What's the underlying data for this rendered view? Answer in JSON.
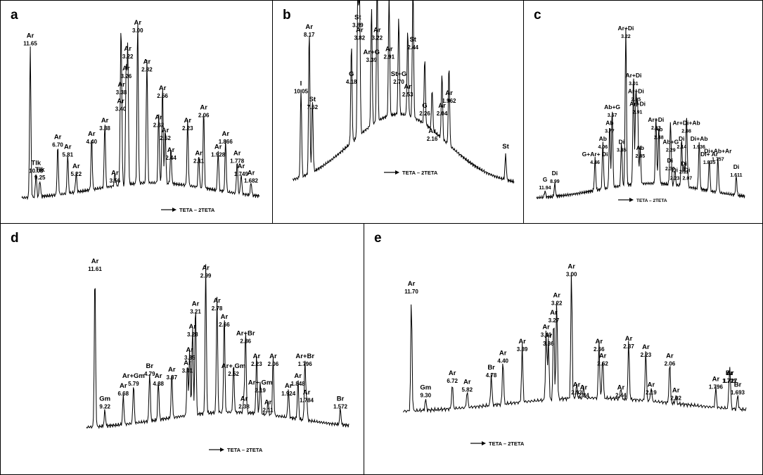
{
  "chart_data": [
    {
      "panel": "a",
      "type": "line",
      "xlabel": "TETA – 2TETA",
      "peaks": [
        {
          "label": "Tlk",
          "d": "10.08",
          "h": 0.14
        },
        {
          "label": "Tlk",
          "d": "9.25",
          "h": 0.1
        },
        {
          "label": "Ar",
          "d": "11.65",
          "h": 0.92
        },
        {
          "label": "Ar",
          "d": "6.70",
          "h": 0.3
        },
        {
          "label": "Ar",
          "d": "5.81",
          "h": 0.24
        },
        {
          "label": "Ar",
          "d": "5.22",
          "h": 0.12
        },
        {
          "label": "Ar",
          "d": "4.40",
          "h": 0.32
        },
        {
          "label": "Ar",
          "d": "3.88",
          "h": 0.4
        },
        {
          "label": "Ar",
          "d": "3.56",
          "h": 0.08
        },
        {
          "label": "Ar",
          "d": "3.40",
          "h": 0.52
        },
        {
          "label": "Ar",
          "d": "3.38",
          "h": 0.62
        },
        {
          "label": "Ar",
          "d": "3.26",
          "h": 0.72
        },
        {
          "label": "Ar",
          "d": "3.22",
          "h": 0.84
        },
        {
          "label": "Ar",
          "d": "3.00",
          "h": 1.0
        },
        {
          "label": "Ar",
          "d": "2.82",
          "h": 0.76
        },
        {
          "label": "Ar",
          "d": "2.56",
          "h": 0.6
        },
        {
          "label": "Ar",
          "d": "2.62",
          "h": 0.42
        },
        {
          "label": "Ar",
          "d": "2.52",
          "h": 0.34
        },
        {
          "label": "Ar",
          "d": "2.44",
          "h": 0.22
        },
        {
          "label": "Ar",
          "d": "2.23",
          "h": 0.4
        },
        {
          "label": "Ar",
          "d": "2.11",
          "h": 0.2
        },
        {
          "label": "Ar",
          "d": "2.06",
          "h": 0.48
        },
        {
          "label": "Ar",
          "d": "1.866",
          "h": 0.32
        },
        {
          "label": "Ar",
          "d": "1.928",
          "h": 0.24
        },
        {
          "label": "Ar",
          "d": "1.778",
          "h": 0.2
        },
        {
          "label": "Ar",
          "d": "1.749",
          "h": 0.12
        },
        {
          "label": "Ar",
          "d": "1.682",
          "h": 0.08
        }
      ]
    },
    {
      "panel": "b",
      "type": "line",
      "xlabel": "TETA – 2TETA",
      "peaks": [
        {
          "label": "I",
          "d": "10.05",
          "h": 0.56
        },
        {
          "label": "Ar",
          "d": "8.17",
          "h": 0.92
        },
        {
          "label": "St",
          "d": "7.62",
          "h": 0.46
        },
        {
          "label": "G",
          "d": "4.18",
          "h": 0.62
        },
        {
          "label": "St",
          "d": "3.89",
          "h": 0.98
        },
        {
          "label": "Ar",
          "d": "3.82",
          "h": 0.9
        },
        {
          "label": "Ar+G",
          "d": "3.39",
          "h": 0.76
        },
        {
          "label": "Ar",
          "d": "3.22",
          "h": 0.9
        },
        {
          "label": "Ar",
          "d": "2.91",
          "h": 0.78
        },
        {
          "label": "St+G",
          "d": "2.70",
          "h": 0.62
        },
        {
          "label": "St",
          "d": "2.44",
          "h": 0.84
        },
        {
          "label": "Ar",
          "d": "2.53",
          "h": 0.54
        },
        {
          "label": "G",
          "d": "2.26",
          "h": 0.42
        },
        {
          "label": "Ar",
          "d": "2.16",
          "h": 0.26
        },
        {
          "label": "Ar",
          "d": "2.04",
          "h": 0.42
        },
        {
          "label": "Ar",
          "d": "1.962",
          "h": 0.5
        },
        {
          "label": "St",
          "d": "",
          "h": 0.16
        }
      ]
    },
    {
      "panel": "c",
      "type": "line",
      "xlabel": "TETA – 2TETA",
      "peaks": [
        {
          "label": "G",
          "d": "11.94",
          "h": 0.04
        },
        {
          "label": "Di",
          "d": "8.99",
          "h": 0.08
        },
        {
          "label": "G+Ar+ Di",
          "d": "4.46",
          "h": 0.2
        },
        {
          "label": "Ab",
          "d": "4.06",
          "h": 0.3
        },
        {
          "label": "Ab",
          "d": "3.77",
          "h": 0.4
        },
        {
          "label": "Ab+G",
          "d": "3.67",
          "h": 0.5
        },
        {
          "label": "Di",
          "d": "3.35",
          "h": 0.28
        },
        {
          "label": "Ar+Di",
          "d": "3.22",
          "h": 1.0
        },
        {
          "label": "Ar+Di",
          "d": "3.01",
          "h": 0.7
        },
        {
          "label": "Ar+Di",
          "d": "2.95",
          "h": 0.6
        },
        {
          "label": "Ar+Di",
          "d": "2.91",
          "h": 0.52
        },
        {
          "label": "Ab",
          "d": "2.85",
          "h": 0.24
        },
        {
          "label": "Ar+Di",
          "d": "2.53",
          "h": 0.42
        },
        {
          "label": "Ab",
          "d": "2.48",
          "h": 0.36
        },
        {
          "label": "Ab+G",
          "d": "2.29",
          "h": 0.28
        },
        {
          "label": "Di",
          "d": "2.30",
          "h": 0.16
        },
        {
          "label": "Di",
          "d": "2.23",
          "h": 0.1
        },
        {
          "label": "Di",
          "d": "2.14",
          "h": 0.3
        },
        {
          "label": "Di",
          "d": "2.11",
          "h": 0.14
        },
        {
          "label": "Di",
          "d": "2.07",
          "h": 0.1
        },
        {
          "label": "Ar+Di+Ab",
          "d": "2.08",
          "h": 0.4
        },
        {
          "label": "Di+Ab",
          "d": "1.936",
          "h": 0.3
        },
        {
          "label": "Di+ Ar",
          "d": "1.835",
          "h": 0.2
        },
        {
          "label": "Di+Ab+Ar",
          "d": "1.757",
          "h": 0.22
        },
        {
          "label": "Di",
          "d": "1.611",
          "h": 0.12
        }
      ]
    },
    {
      "panel": "d",
      "type": "line",
      "xlabel": "TETA – 2TETA",
      "peaks": [
        {
          "label": "Ar",
          "d": "11.61",
          "h": 0.94
        },
        {
          "label": "Gm",
          "d": "9.22",
          "h": 0.1
        },
        {
          "label": "Ar",
          "d": "6.68",
          "h": 0.18
        },
        {
          "label": "Ar+Gm",
          "d": "5.79",
          "h": 0.24
        },
        {
          "label": "Br",
          "d": "4.79",
          "h": 0.3
        },
        {
          "label": "Ar",
          "d": "4.38",
          "h": 0.24
        },
        {
          "label": "Ar",
          "d": "3.87",
          "h": 0.28
        },
        {
          "label": "Ar",
          "d": "3.41",
          "h": 0.32
        },
        {
          "label": "Ar",
          "d": "3.35",
          "h": 0.4
        },
        {
          "label": "Ar",
          "d": "3.28",
          "h": 0.54
        },
        {
          "label": "Ar",
          "d": "3.21",
          "h": 0.68
        },
        {
          "label": "Ar",
          "d": "2.99",
          "h": 0.9
        },
        {
          "label": "Ar",
          "d": "2.78",
          "h": 0.7
        },
        {
          "label": "Ar",
          "d": "2.66",
          "h": 0.6
        },
        {
          "label": "Ar+Br",
          "d": "2.36",
          "h": 0.5
        },
        {
          "label": "Ar+ Gm",
          "d": "2.52",
          "h": 0.3
        },
        {
          "label": "Ar",
          "d": "2.38",
          "h": 0.1
        },
        {
          "label": "Ar",
          "d": "2.23",
          "h": 0.36
        },
        {
          "label": "Ar+ Gm",
          "d": "2.19",
          "h": 0.2
        },
        {
          "label": "Ar",
          "d": "2.11",
          "h": 0.08
        },
        {
          "label": "Ar",
          "d": "2.06",
          "h": 0.36
        },
        {
          "label": "Ar",
          "d": "1.924",
          "h": 0.18
        },
        {
          "label": "Ar",
          "d": "1.848",
          "h": 0.24
        },
        {
          "label": "Ar+Br",
          "d": "1.796",
          "h": 0.36
        },
        {
          "label": "Ar",
          "d": "1.784",
          "h": 0.14
        },
        {
          "label": "Br",
          "d": "1.572",
          "h": 0.1
        }
      ]
    },
    {
      "panel": "e",
      "type": "line",
      "xlabel": "TETA – 2TETA",
      "peaks": [
        {
          "label": "Ar",
          "d": "11.70",
          "h": 0.8
        },
        {
          "label": "Gm",
          "d": "9.30",
          "h": 0.08
        },
        {
          "label": "Ar",
          "d": "6.72",
          "h": 0.18
        },
        {
          "label": "Ar",
          "d": "5.82",
          "h": 0.12
        },
        {
          "label": "Br",
          "d": "4.78",
          "h": 0.22
        },
        {
          "label": "Ar",
          "d": "4.40",
          "h": 0.32
        },
        {
          "label": "Ar",
          "d": "3.89",
          "h": 0.4
        },
        {
          "label": "Ar",
          "d": "3.40",
          "h": 0.5
        },
        {
          "label": "Ar",
          "d": "3.36",
          "h": 0.44
        },
        {
          "label": "Ar",
          "d": "3.27",
          "h": 0.6
        },
        {
          "label": "Ar",
          "d": "3.22",
          "h": 0.72
        },
        {
          "label": "Ar",
          "d": "3.00",
          "h": 0.92
        },
        {
          "label": "Ar",
          "d": "2.93",
          "h": 0.1
        },
        {
          "label": "Ar",
          "d": "2.84",
          "h": 0.08
        },
        {
          "label": "Ar",
          "d": "2.66",
          "h": 0.4
        },
        {
          "label": "Ar",
          "d": "2.62",
          "h": 0.3
        },
        {
          "label": "Ar",
          "d": "2.44",
          "h": 0.08
        },
        {
          "label": "Ar",
          "d": "2.37",
          "h": 0.42
        },
        {
          "label": "Ar",
          "d": "2.23",
          "h": 0.36
        },
        {
          "label": "Ar",
          "d": "2.19",
          "h": 0.1
        },
        {
          "label": "Ar",
          "d": "2.06",
          "h": 0.3
        },
        {
          "label": "Ar",
          "d": "2.02",
          "h": 0.06
        },
        {
          "label": "Ar",
          "d": "1.727",
          "h": 0.18
        },
        {
          "label": "Ar",
          "d": "1.796",
          "h": 0.14
        },
        {
          "label": "Br",
          "d": "1.731",
          "h": 0.18
        },
        {
          "label": "Br",
          "d": "1.693",
          "h": 0.1
        }
      ]
    }
  ]
}
